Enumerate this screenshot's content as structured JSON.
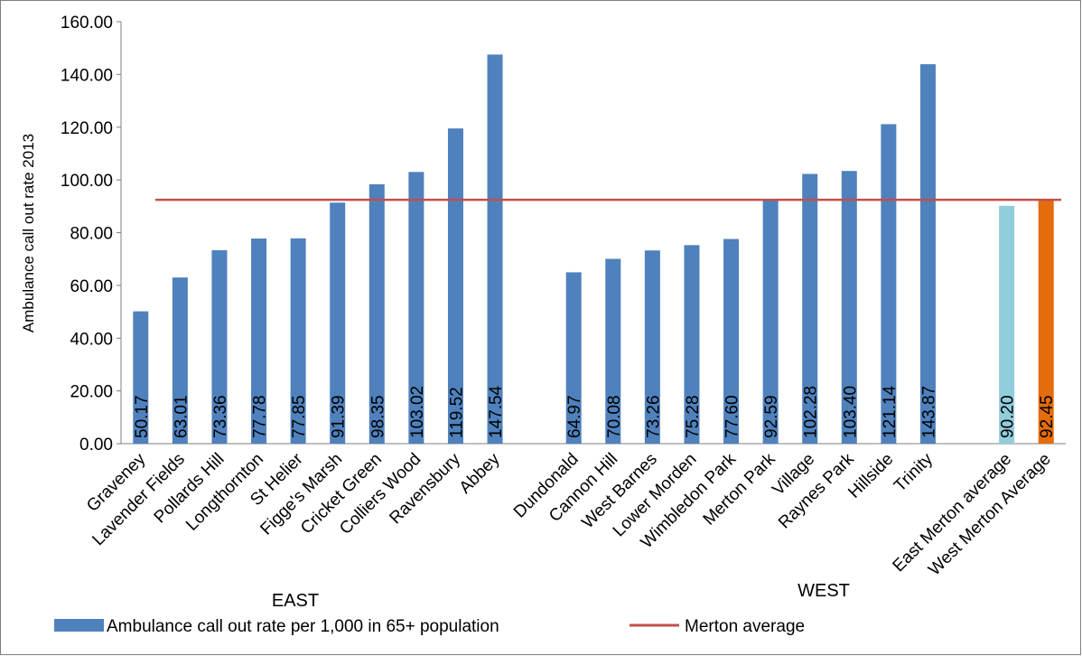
{
  "chart_data": {
    "type": "bar",
    "ylabel": "Ambulance call out rate 2013",
    "ylim": [
      0,
      160
    ],
    "yticks": [
      "0.00",
      "20.00",
      "40.00",
      "60.00",
      "80.00",
      "100.00",
      "120.00",
      "140.00",
      "160.00"
    ],
    "grid": false,
    "legend_position": "bottom",
    "groups": [
      "EAST",
      "WEST"
    ],
    "categories": [
      "Graveney",
      "Lavender Fields",
      "Pollards Hill",
      "Longthornton",
      "St Helier",
      "Figge's Marsh",
      "Cricket Green",
      "Colliers Wood",
      "Ravensbury",
      "Abbey",
      "",
      "Dundonald",
      "Cannon Hill",
      "West Barnes",
      "Lower Morden",
      "Wimbledon Park",
      "Merton Park",
      "Village",
      "Raynes Park",
      "Hillside",
      "Trinity",
      "",
      "East Merton average",
      "West Merton Average"
    ],
    "values": [
      50.17,
      63.01,
      73.36,
      77.78,
      77.85,
      91.39,
      98.35,
      103.02,
      119.52,
      147.54,
      null,
      64.97,
      70.08,
      73.26,
      75.28,
      77.6,
      92.59,
      102.28,
      103.4,
      121.14,
      143.87,
      null,
      90.2,
      92.45
    ],
    "value_labels": [
      "50.17",
      "63.01",
      "73.36",
      "77.78",
      "77.85",
      "91.39",
      "98.35",
      "103.02",
      "119.52",
      "147.54",
      "",
      "64.97",
      "70.08",
      "73.26",
      "75.28",
      "77.60",
      "92.59",
      "102.28",
      "103.40",
      "121.14",
      "143.87",
      "",
      "90.20",
      "92.45"
    ],
    "bar_colors": [
      "#4f81bd",
      "#4f81bd",
      "#4f81bd",
      "#4f81bd",
      "#4f81bd",
      "#4f81bd",
      "#4f81bd",
      "#4f81bd",
      "#4f81bd",
      "#4f81bd",
      "",
      "#4f81bd",
      "#4f81bd",
      "#4f81bd",
      "#4f81bd",
      "#4f81bd",
      "#4f81bd",
      "#4f81bd",
      "#4f81bd",
      "#4f81bd",
      "#4f81bd",
      "",
      "#92cddc",
      "#e46c0a"
    ],
    "series": [
      {
        "name": "Ambulance call out rate per 1,000 in 65+ population",
        "color": "#4f81bd"
      }
    ],
    "reference_line": {
      "name": "Merton average",
      "value": 92.45,
      "color": "#c0504d"
    }
  }
}
